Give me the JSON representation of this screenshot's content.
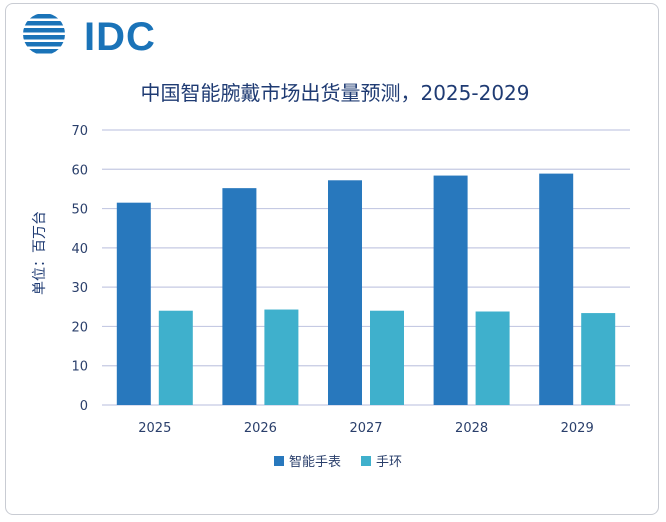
{
  "logo": {
    "text": "IDC"
  },
  "chart_data": {
    "type": "bar",
    "title": "中国智能腕戴市场出货量预测，2025-2029",
    "xlabel": "",
    "ylabel": "单位：百万台",
    "categories": [
      "2025",
      "2026",
      "2027",
      "2028",
      "2029"
    ],
    "series": [
      {
        "name": "智能手表",
        "values": [
          51.5,
          55.2,
          57.2,
          58.4,
          58.9
        ],
        "color": "#2878bd"
      },
      {
        "name": "手环",
        "values": [
          24.0,
          24.3,
          24.0,
          23.8,
          23.4
        ],
        "color": "#3fb0cc"
      }
    ],
    "ylim": [
      0,
      70
    ],
    "yticks": [
      0,
      10,
      20,
      30,
      40,
      50,
      60,
      70
    ],
    "grid": true,
    "legend": "bottom"
  },
  "colors": {
    "title": "#1f3b73",
    "axis_text": "#2a3f6b",
    "grid": "#c5cae3",
    "logo": "#1a73b8"
  }
}
